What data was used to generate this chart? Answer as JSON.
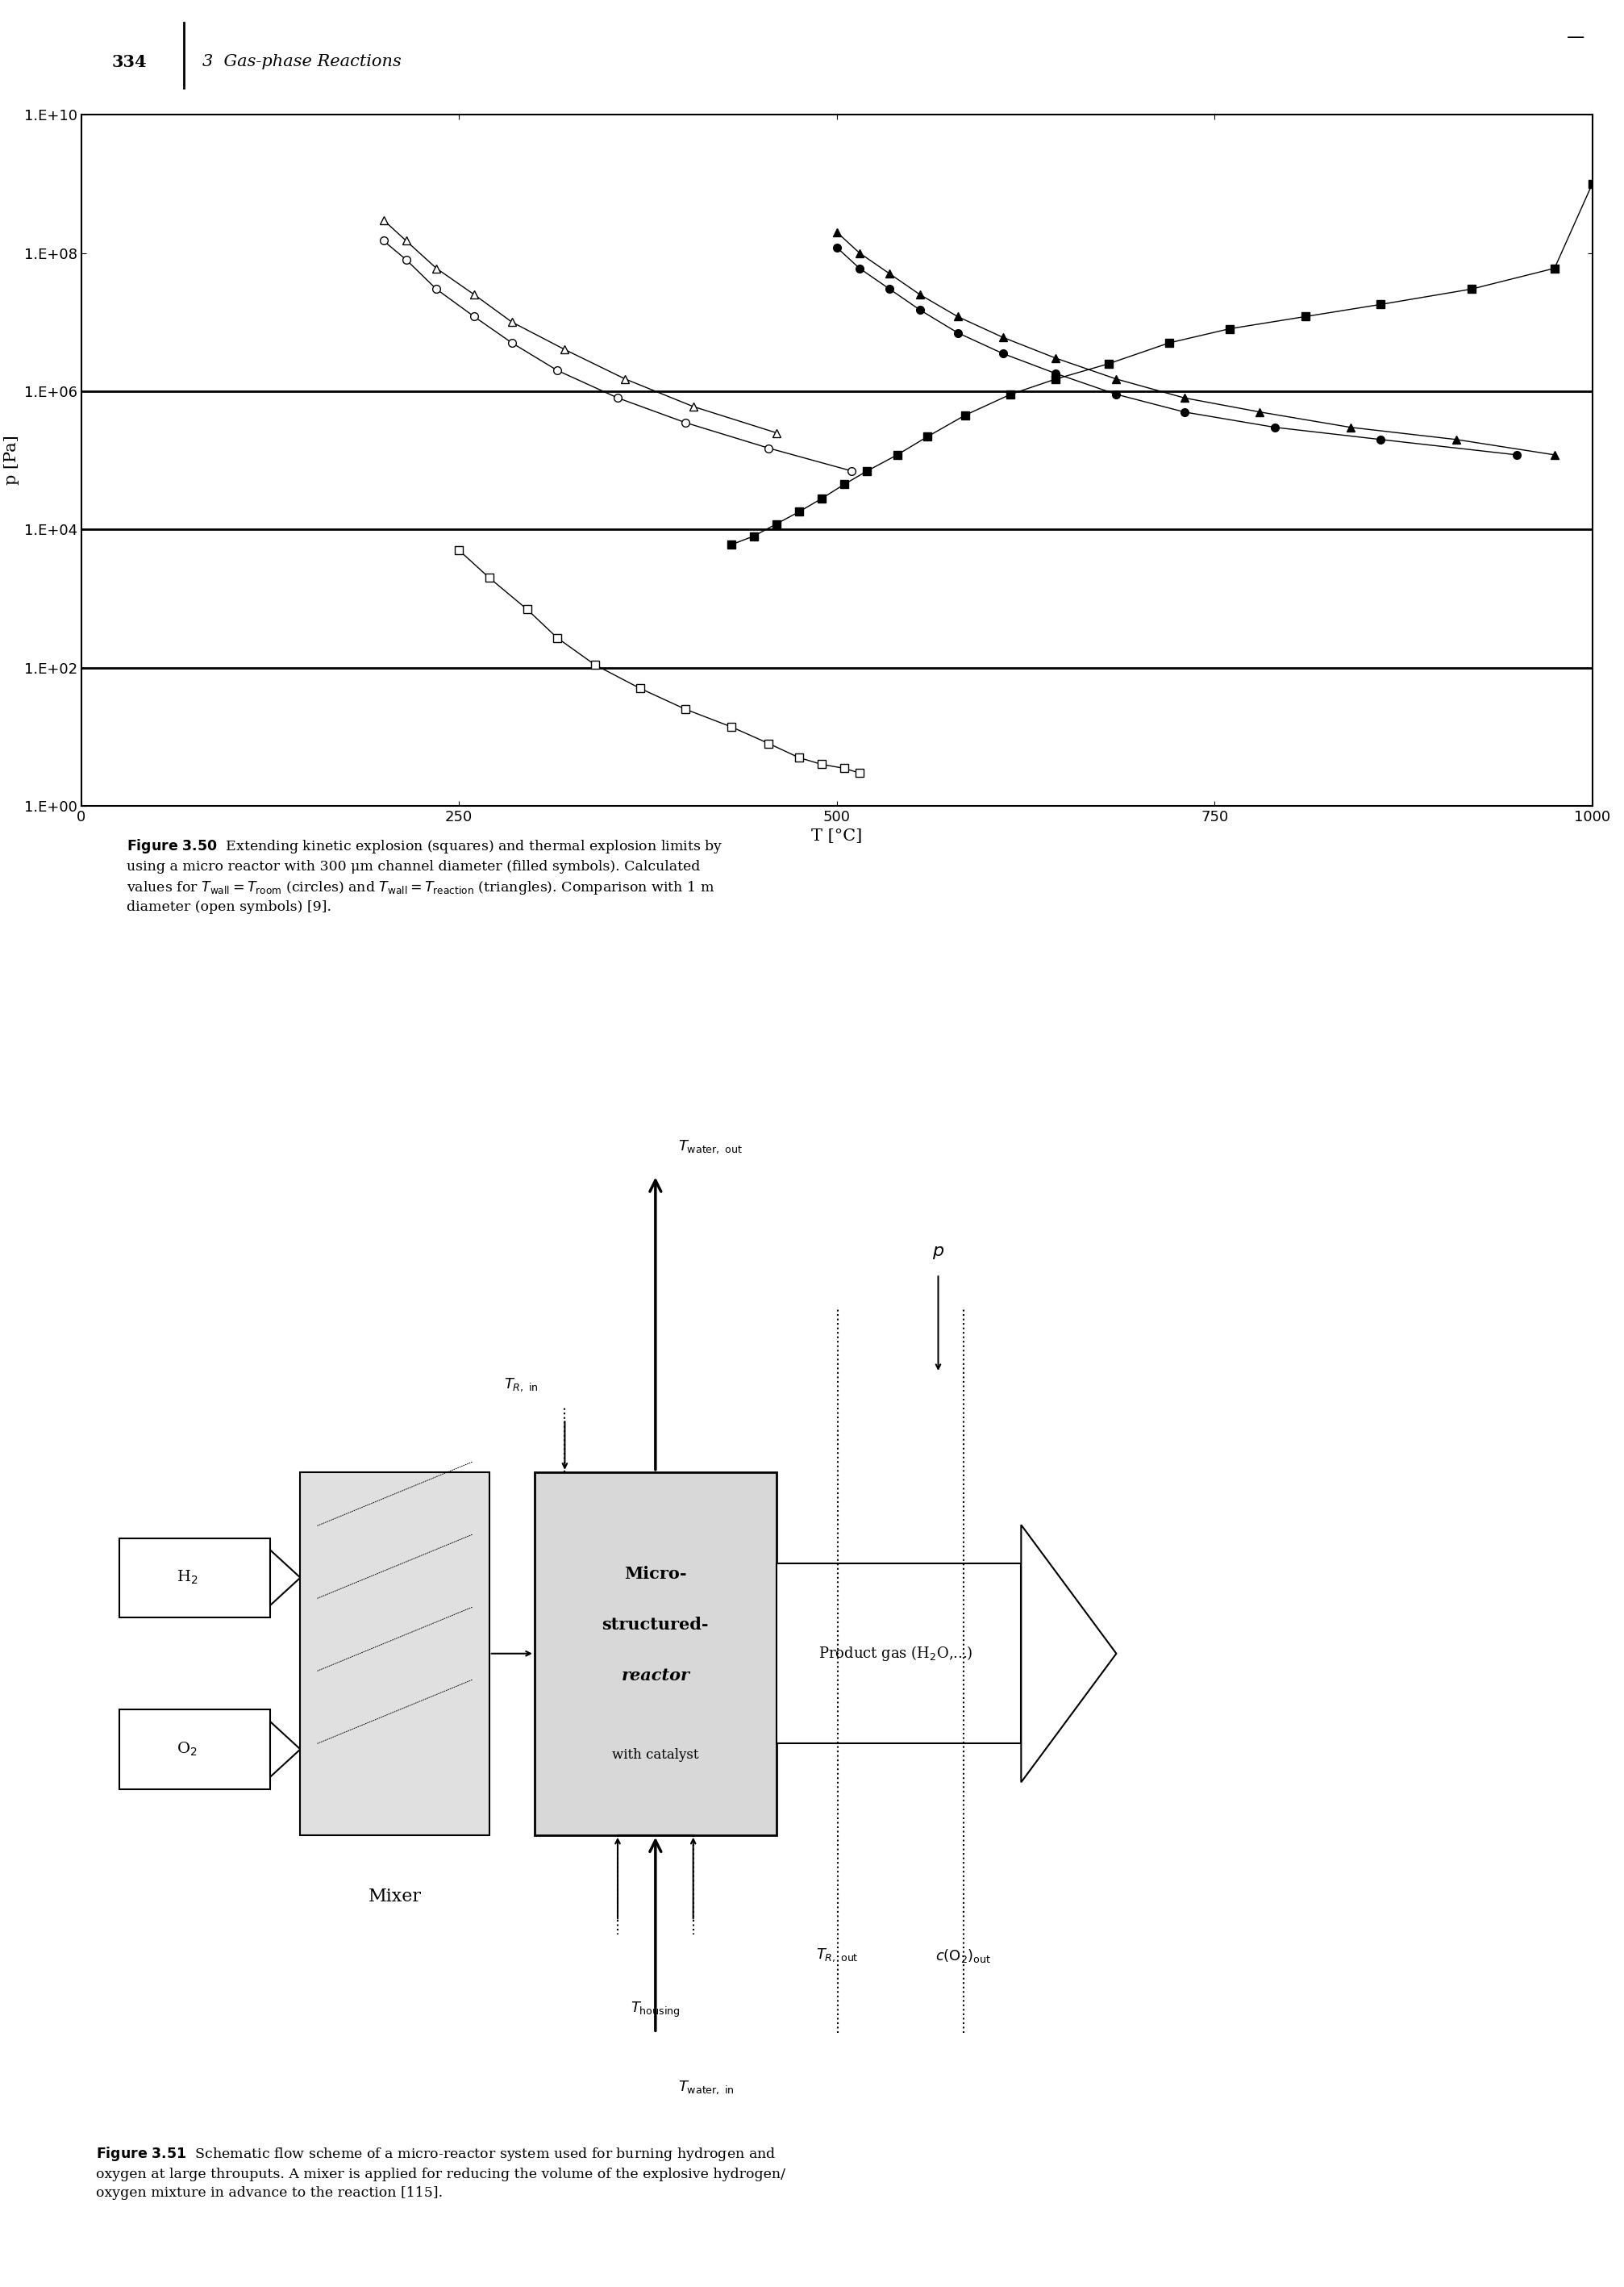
{
  "page_header": "334",
  "page_subtitle": "3  Gas-phase Reactions",
  "xlabel": "T [°C]",
  "ylabel": "p [Pa]",
  "xlim": [
    0,
    1000
  ],
  "xticks": [
    0,
    250,
    500,
    750,
    1000
  ],
  "ytick_labels": [
    "1.E+00",
    "1.E+02",
    "1.E+04",
    "1.E+06",
    "1.E+08",
    "1.E+10"
  ],
  "ytick_values": [
    1.0,
    100.0,
    10000.0,
    1000000.0,
    100000000.0,
    10000000000.0
  ],
  "hlines": [
    100.0,
    10000.0,
    1000000.0
  ],
  "open_squares_T": [
    250,
    270,
    295,
    315,
    340,
    370,
    400,
    430,
    455,
    475,
    490,
    505,
    515
  ],
  "open_squares_p": [
    5000,
    2000,
    700,
    270,
    110,
    50,
    25,
    14,
    8,
    5,
    4,
    3.5,
    3
  ],
  "filled_squares_T": [
    430,
    445,
    460,
    475,
    490,
    505,
    520,
    540,
    560,
    585,
    615,
    645,
    680,
    720,
    760,
    810,
    860,
    920,
    975,
    1000
  ],
  "filled_squares_p": [
    6000,
    8000,
    12000,
    18000,
    28000,
    45000,
    70000,
    120000,
    220000,
    450000,
    900000,
    1500000,
    2500000,
    5000000,
    8000000,
    12000000,
    18000000,
    30000000,
    60000000,
    1000000000
  ],
  "open_circles_T": [
    200,
    215,
    235,
    260,
    285,
    315,
    355,
    400,
    455,
    510
  ],
  "open_circles_p": [
    150000000.0,
    80000000.0,
    30000000.0,
    12000000.0,
    5000000.0,
    2000000.0,
    800000.0,
    350000.0,
    150000.0,
    70000.0
  ],
  "open_triangles_T": [
    200,
    215,
    235,
    260,
    285,
    320,
    360,
    405,
    460
  ],
  "open_triangles_p": [
    300000000.0,
    150000000.0,
    60000000.0,
    25000000.0,
    10000000.0,
    4000000.0,
    1500000.0,
    600000.0,
    250000.0
  ],
  "filled_triangles_T": [
    500,
    515,
    535,
    555,
    580,
    610,
    645,
    685,
    730,
    780,
    840,
    910,
    975
  ],
  "filled_triangles_p": [
    200000000.0,
    100000000.0,
    50000000.0,
    25000000.0,
    12000000.0,
    6000000.0,
    3000000.0,
    1500000.0,
    800000.0,
    500000.0,
    300000.0,
    200000.0,
    120000.0
  ],
  "filled_circles_T": [
    500,
    515,
    535,
    555,
    580,
    610,
    645,
    685,
    730,
    790,
    860,
    950
  ],
  "filled_circles_p": [
    120000000.0,
    60000000.0,
    30000000.0,
    15000000.0,
    7000000.0,
    3500000.0,
    1800000.0,
    900000.0,
    500000.0,
    300000.0,
    200000.0,
    120000.0
  ],
  "background_color": "#ffffff"
}
